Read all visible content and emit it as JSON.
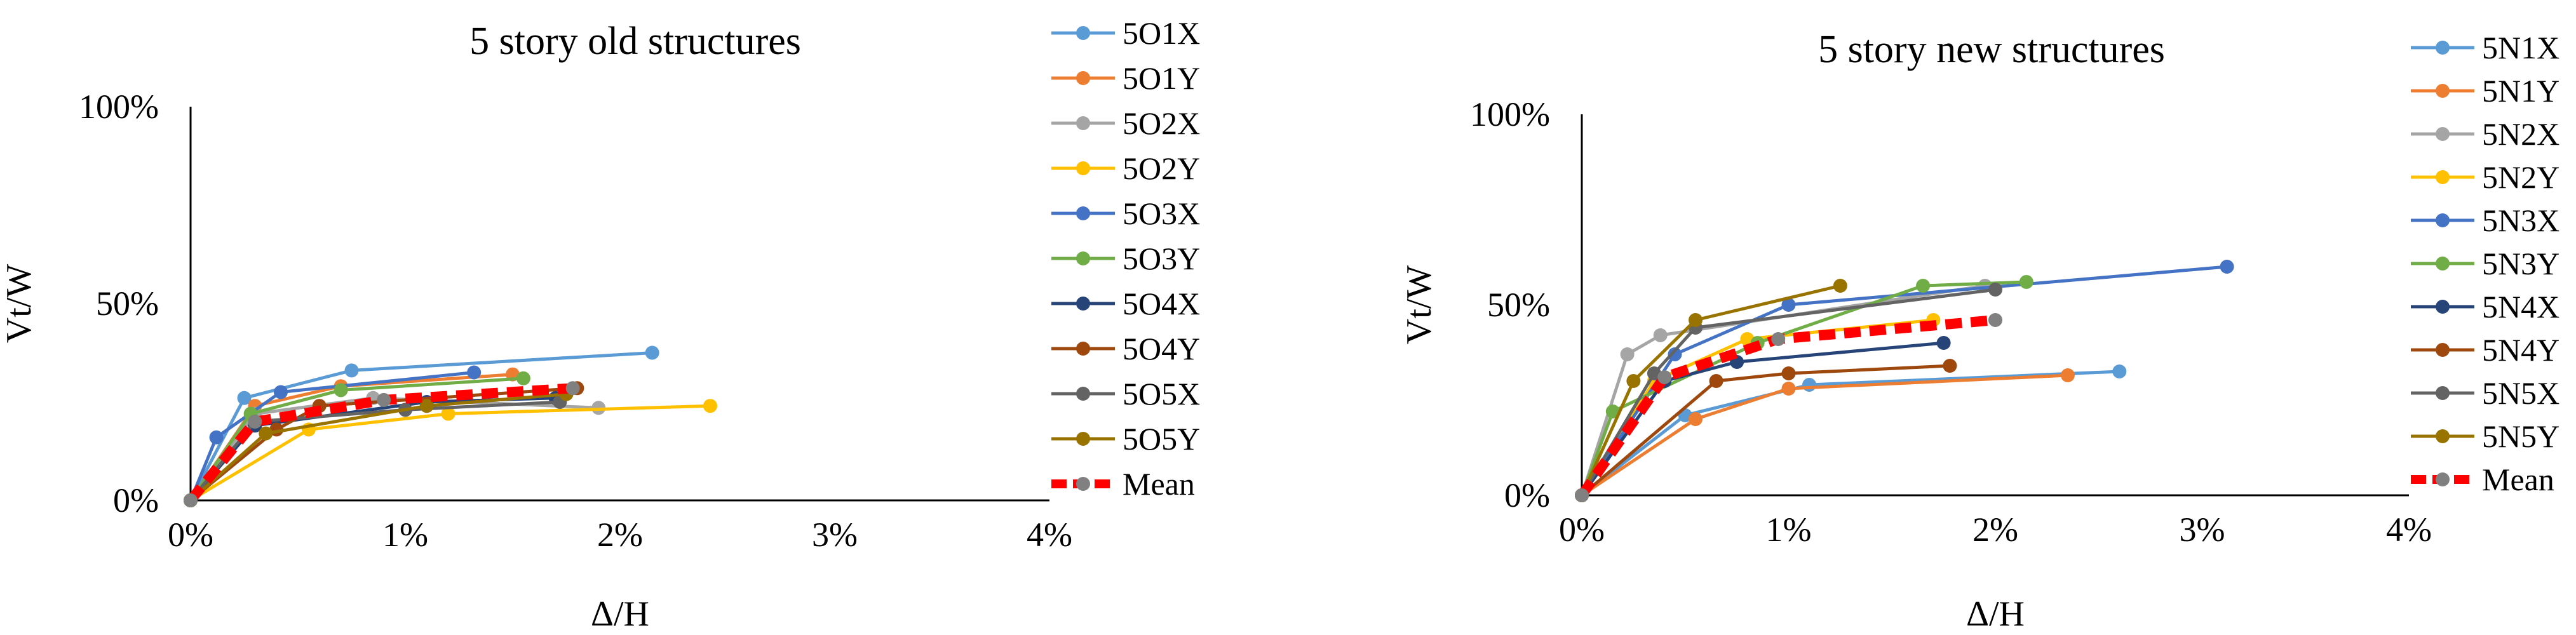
{
  "chart_data": [
    {
      "type": "line",
      "title": "5 story old structures",
      "xlabel": "Δ/H",
      "ylabel": "Vt/W",
      "xlim": [
        0,
        4
      ],
      "ylim": [
        0,
        100
      ],
      "x_unit": "%",
      "y_unit": "%",
      "x_ticks": [
        "0%",
        "1%",
        "2%",
        "3%",
        "4%"
      ],
      "y_ticks": [
        "0%",
        "50%",
        "100%"
      ],
      "grid": false,
      "legend_position": "right",
      "series": [
        {
          "name": "5O1X",
          "color": "#5B9BD5",
          "points": [
            [
              0,
              0
            ],
            [
              0.25,
              26
            ],
            [
              0.75,
              33
            ],
            [
              2.15,
              37.5
            ]
          ]
        },
        {
          "name": "5O1Y",
          "color": "#ED7D31",
          "points": [
            [
              0,
              0
            ],
            [
              0.3,
              24
            ],
            [
              0.7,
              29
            ],
            [
              1.5,
              32
            ]
          ]
        },
        {
          "name": "5O2X",
          "color": "#A5A5A5",
          "points": [
            [
              0,
              0
            ],
            [
              0.3,
              22
            ],
            [
              0.85,
              26
            ],
            [
              1.9,
              23.5
            ]
          ]
        },
        {
          "name": "5O2Y",
          "color": "#FFC000",
          "points": [
            [
              0,
              0
            ],
            [
              0.55,
              18
            ],
            [
              1.2,
              22
            ],
            [
              2.42,
              24
            ]
          ]
        },
        {
          "name": "5O3X",
          "color": "#4472C4",
          "points": [
            [
              0,
              0
            ],
            [
              0.12,
              16
            ],
            [
              0.42,
              27.5
            ],
            [
              1.32,
              32.5
            ]
          ]
        },
        {
          "name": "5O3Y",
          "color": "#70AD47",
          "points": [
            [
              0,
              0
            ],
            [
              0.28,
              22
            ],
            [
              0.7,
              28
            ],
            [
              1.55,
              31
            ]
          ]
        },
        {
          "name": "5O4X",
          "color": "#264478",
          "points": [
            [
              0,
              0
            ],
            [
              0.3,
              19
            ],
            [
              1.1,
              25
            ],
            [
              1.7,
              26
            ]
          ]
        },
        {
          "name": "5O4Y",
          "color": "#9E480E",
          "points": [
            [
              0,
              0
            ],
            [
              0.4,
              18
            ],
            [
              0.6,
              24
            ],
            [
              1.8,
              28.5
            ]
          ]
        },
        {
          "name": "5O5X",
          "color": "#636363",
          "points": [
            [
              0,
              0
            ],
            [
              0.3,
              20
            ],
            [
              1.0,
              23
            ],
            [
              1.72,
              25
            ]
          ]
        },
        {
          "name": "5O5Y",
          "color": "#997300",
          "points": [
            [
              0,
              0
            ],
            [
              0.35,
              17
            ],
            [
              1.1,
              24
            ],
            [
              1.75,
              27
            ]
          ]
        },
        {
          "name": "Mean",
          "color": "#FF0000",
          "marker": "#808080",
          "dashed": true,
          "points": [
            [
              0,
              0
            ],
            [
              0.3,
              20
            ],
            [
              0.9,
              25.5
            ],
            [
              1.78,
              28.5
            ]
          ]
        }
      ]
    },
    {
      "type": "line",
      "title": "5 story new structures",
      "xlabel": "Δ/H",
      "ylabel": "Vt/W",
      "xlim": [
        0,
        4
      ],
      "ylim": [
        0,
        100
      ],
      "x_unit": "%",
      "y_unit": "%",
      "x_ticks": [
        "0%",
        "1%",
        "2%",
        "3%",
        "4%"
      ],
      "y_ticks": [
        "0%",
        "50%",
        "100%"
      ],
      "grid": false,
      "legend_position": "right",
      "series": [
        {
          "name": "5N1X",
          "color": "#5B9BD5",
          "points": [
            [
              0,
              0
            ],
            [
              0.5,
              21
            ],
            [
              1.1,
              29
            ],
            [
              2.6,
              32.5
            ]
          ]
        },
        {
          "name": "5N1Y",
          "color": "#ED7D31",
          "points": [
            [
              0,
              0
            ],
            [
              0.55,
              20
            ],
            [
              1.0,
              28
            ],
            [
              2.35,
              31.5
            ]
          ]
        },
        {
          "name": "5N2X",
          "color": "#A5A5A5",
          "points": [
            [
              0,
              0
            ],
            [
              0.22,
              37
            ],
            [
              0.38,
              42
            ],
            [
              1.95,
              55
            ]
          ]
        },
        {
          "name": "5N2Y",
          "color": "#FFC000",
          "points": [
            [
              0,
              0
            ],
            [
              0.35,
              30
            ],
            [
              0.8,
              41
            ],
            [
              1.7,
              46
            ]
          ]
        },
        {
          "name": "5N3X",
          "color": "#4472C4",
          "points": [
            [
              0,
              0
            ],
            [
              0.45,
              37
            ],
            [
              1.0,
              50
            ],
            [
              3.12,
              60
            ]
          ]
        },
        {
          "name": "5N3Y",
          "color": "#70AD47",
          "points": [
            [
              0,
              0
            ],
            [
              0.15,
              22
            ],
            [
              0.85,
              40
            ],
            [
              1.65,
              55
            ],
            [
              2.15,
              56
            ]
          ]
        },
        {
          "name": "5N4X",
          "color": "#264478",
          "points": [
            [
              0,
              0
            ],
            [
              0.4,
              30
            ],
            [
              0.75,
              35
            ],
            [
              1.75,
              40
            ]
          ]
        },
        {
          "name": "5N4Y",
          "color": "#9E480E",
          "points": [
            [
              0,
              0
            ],
            [
              0.65,
              30
            ],
            [
              1.0,
              32
            ],
            [
              1.78,
              34
            ]
          ]
        },
        {
          "name": "5N5X",
          "color": "#636363",
          "points": [
            [
              0,
              0
            ],
            [
              0.35,
              32
            ],
            [
              0.55,
              44
            ],
            [
              2.0,
              54
            ]
          ]
        },
        {
          "name": "5N5Y",
          "color": "#997300",
          "points": [
            [
              0,
              0
            ],
            [
              0.25,
              30
            ],
            [
              0.55,
              46
            ],
            [
              1.25,
              55
            ]
          ]
        },
        {
          "name": "Mean",
          "color": "#FF0000",
          "marker": "#808080",
          "dashed": true,
          "points": [
            [
              0,
              0
            ],
            [
              0.4,
              31
            ],
            [
              0.95,
              41
            ],
            [
              2.0,
              46
            ]
          ]
        }
      ]
    }
  ]
}
